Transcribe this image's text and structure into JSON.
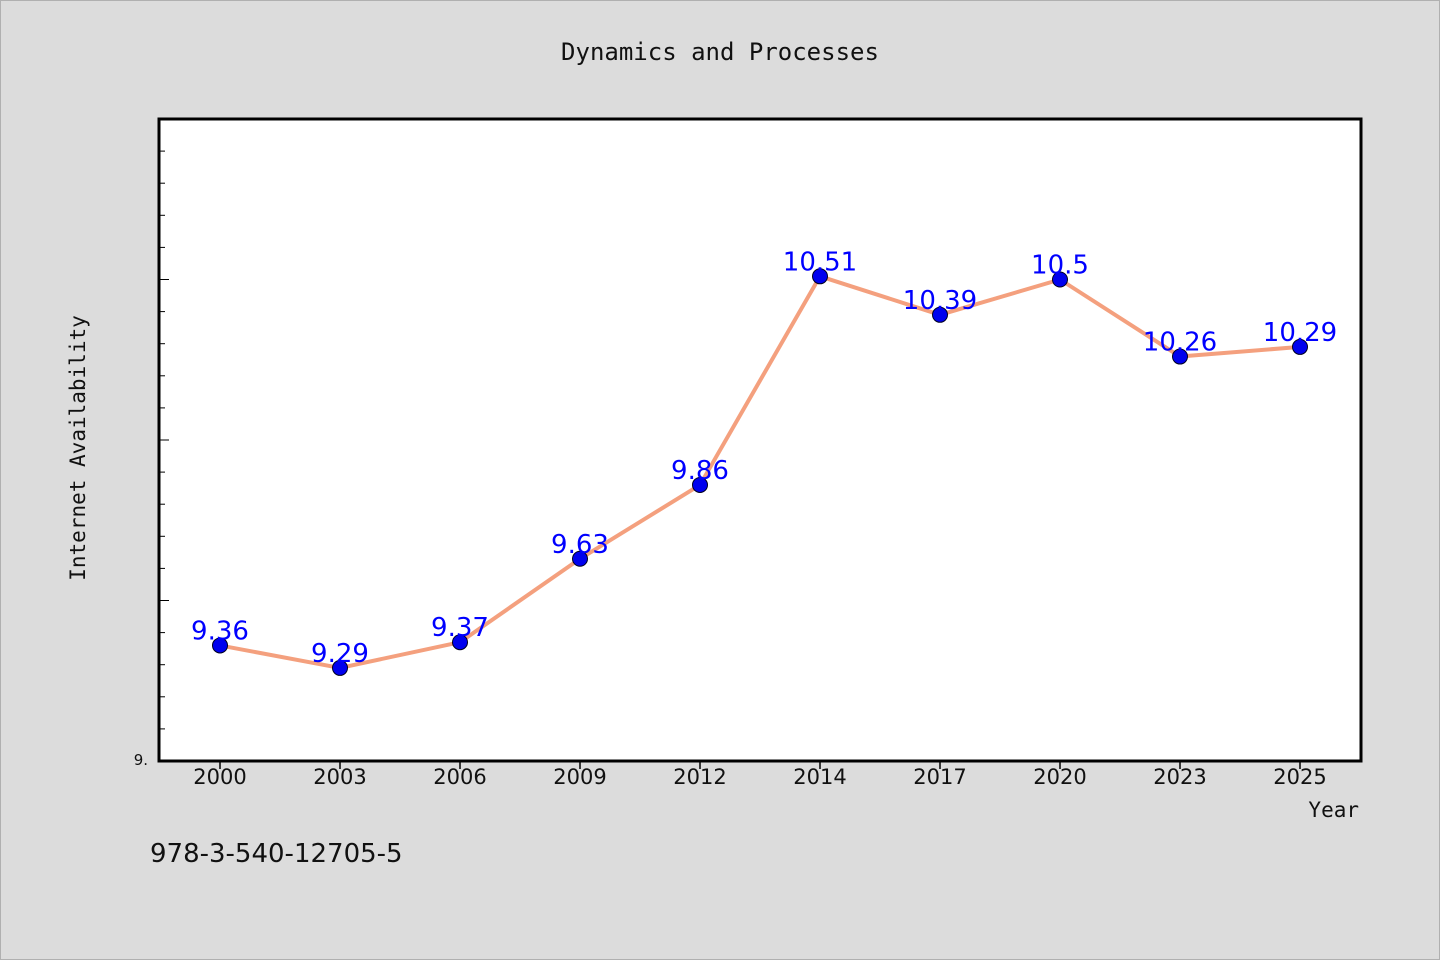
{
  "chart_data": {
    "type": "line",
    "title": "Dynamics and Processes",
    "xlabel": "Year",
    "ylabel": "Internet Availability",
    "categories": [
      "2000",
      "2003",
      "2006",
      "2009",
      "2012",
      "2014",
      "2017",
      "2020",
      "2023",
      "2025"
    ],
    "values": [
      9.36,
      9.29,
      9.37,
      9.63,
      9.86,
      10.51,
      10.39,
      10.5,
      10.26,
      10.29
    ],
    "data_labels": [
      "9.36",
      "9.29",
      "9.37",
      "9.63",
      "9.86",
      "10.51",
      "10.39",
      "10.5",
      "10.26",
      "10.29"
    ],
    "y_tick_label": "9.",
    "ylim": [
      9.0,
      11.0
    ],
    "grid": false,
    "legend": "none",
    "colors": {
      "line": "#f4a07e",
      "marker": "#0000ee",
      "data_label": "#0000ff",
      "plot_background": "#ffffff",
      "page_background": "#dcdcdc"
    }
  },
  "footer_text": "978-3-540-12705-5"
}
